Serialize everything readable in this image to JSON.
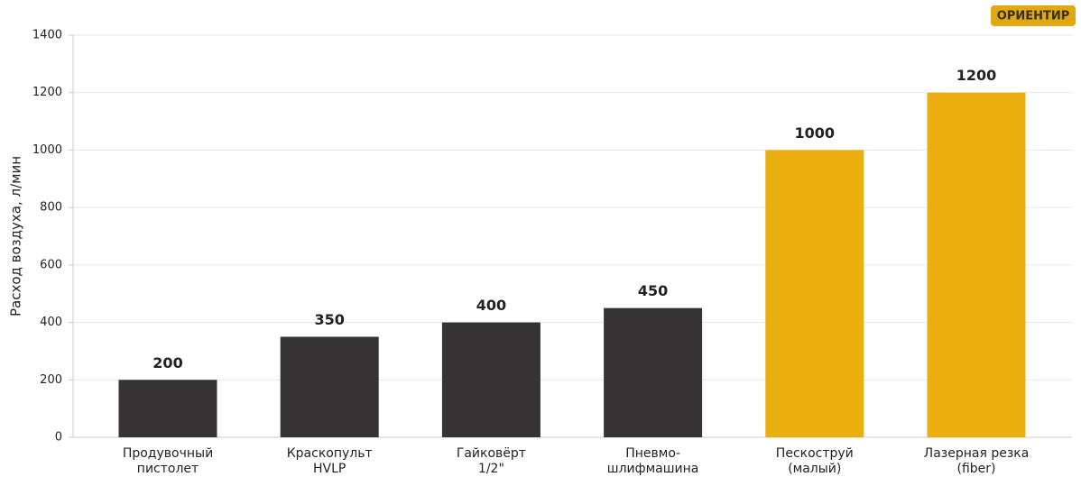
{
  "chart_data": {
    "type": "bar",
    "badge": "ОРИЕНТИР",
    "ylabel": "Расход воздуха, л/мин",
    "categories": [
      "Продувочный\nпистолет",
      "Краскопульт\nHVLP",
      "Гайковёрт\n1/2\"",
      "Пневмо-\nшлифмашина",
      "Пескоструй\n(малый)",
      "Лазерная резка\n(fiber)"
    ],
    "values": [
      200,
      350,
      400,
      450,
      1000,
      1200
    ],
    "colors": [
      "#353334",
      "#353334",
      "#353334",
      "#353334",
      "#ebae0f",
      "#ebae0f"
    ],
    "ylim": [
      0,
      1400
    ],
    "yticks": [
      0,
      200,
      400,
      600,
      800,
      1000,
      1200,
      1400
    ],
    "grid": true
  }
}
